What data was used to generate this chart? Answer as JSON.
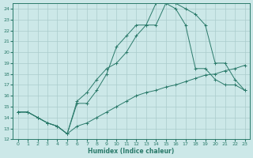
{
  "xlabel": "Humidex (Indice chaleur)",
  "bg_color": "#cce8e8",
  "line_color": "#2a7a6a",
  "grid_color": "#aacccc",
  "ylim": [
    12,
    24.5
  ],
  "xlim": [
    -0.5,
    23.5
  ],
  "yticks": [
    12,
    13,
    14,
    15,
    16,
    17,
    18,
    19,
    20,
    21,
    22,
    23,
    24
  ],
  "xticks": [
    0,
    1,
    2,
    3,
    4,
    5,
    6,
    7,
    8,
    9,
    10,
    11,
    12,
    13,
    14,
    15,
    16,
    17,
    18,
    19,
    20,
    21,
    22,
    23
  ],
  "line1_x": [
    0,
    1,
    2,
    3,
    4,
    5,
    6,
    7,
    8,
    9,
    10,
    11,
    12,
    13,
    14,
    15,
    16,
    17,
    18,
    19,
    20,
    21,
    22,
    23
  ],
  "line1_y": [
    14.5,
    14.5,
    14.0,
    13.5,
    13.2,
    12.5,
    13.2,
    13.5,
    14.0,
    14.5,
    15.0,
    15.5,
    16.0,
    16.3,
    16.5,
    16.8,
    17.0,
    17.3,
    17.6,
    17.9,
    18.0,
    18.3,
    18.5,
    18.8
  ],
  "line2_x": [
    0,
    1,
    2,
    3,
    4,
    5,
    6,
    7,
    8,
    9,
    10,
    11,
    12,
    13,
    14,
    15,
    16,
    17,
    18,
    19,
    20,
    21,
    22,
    23
  ],
  "line2_y": [
    14.5,
    14.5,
    14.0,
    13.5,
    13.2,
    12.5,
    15.5,
    16.3,
    17.5,
    18.5,
    19.0,
    20.0,
    21.5,
    22.5,
    22.5,
    24.5,
    24.5,
    24.0,
    23.5,
    22.5,
    19.0,
    19.0,
    17.5,
    16.5
  ],
  "line3_x": [
    0,
    1,
    2,
    3,
    4,
    5,
    6,
    7,
    8,
    9,
    10,
    11,
    12,
    13,
    14,
    15,
    16,
    17,
    18,
    19,
    20,
    21,
    22,
    23
  ],
  "line3_y": [
    14.5,
    14.5,
    14.0,
    13.5,
    13.2,
    12.5,
    15.3,
    15.3,
    16.5,
    18.0,
    20.5,
    21.5,
    22.5,
    22.5,
    24.5,
    24.5,
    24.0,
    22.5,
    18.5,
    18.5,
    17.5,
    17.0,
    17.0,
    16.5
  ]
}
